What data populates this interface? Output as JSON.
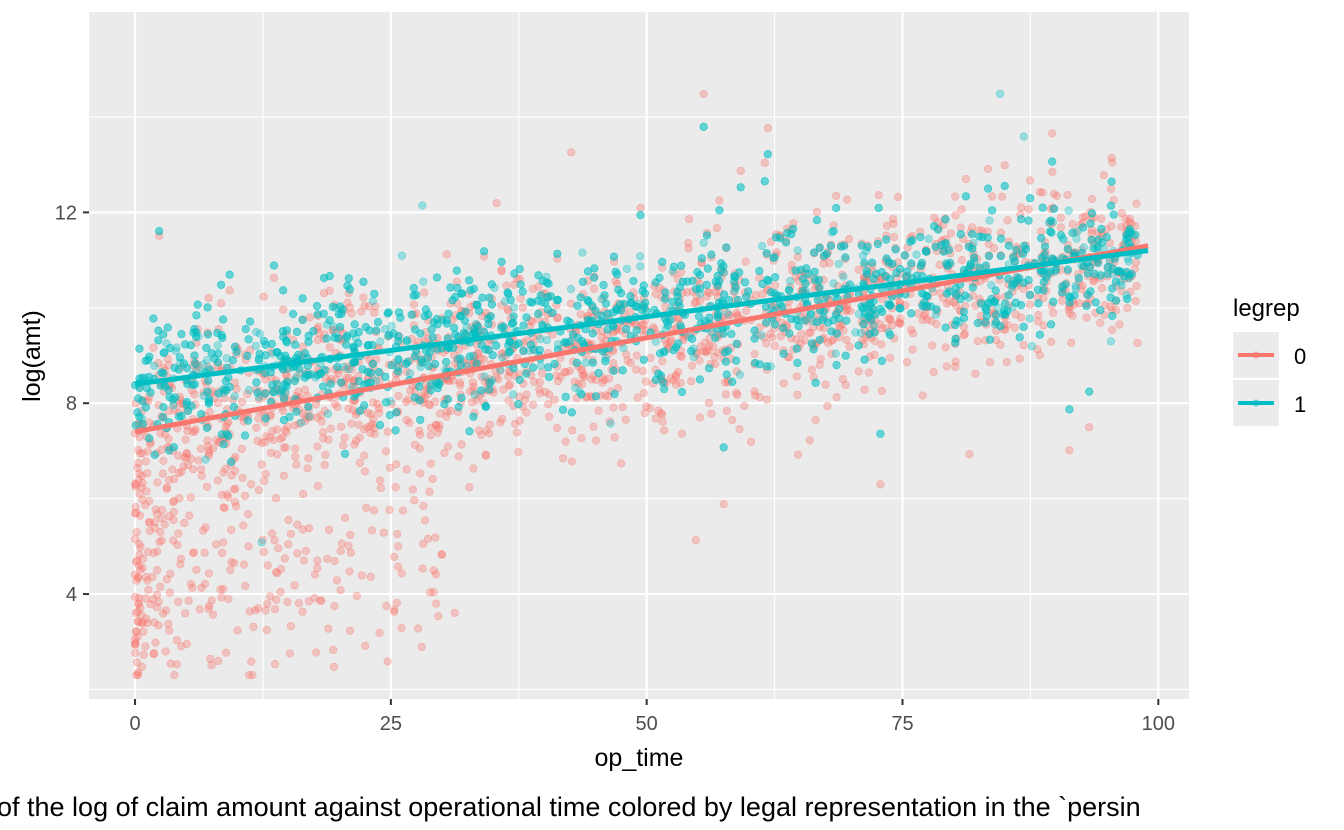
{
  "chart_data": {
    "type": "scatter",
    "title": "",
    "xlabel": "op_time",
    "ylabel": "log(amt)",
    "xlim": [
      -4.5,
      103
    ],
    "ylim": [
      1.8,
      16.2
    ],
    "x_ticks": [
      0,
      25,
      50,
      75,
      100
    ],
    "y_ticks": [
      4,
      8,
      12
    ],
    "x_tick_labels": [
      "0",
      "25",
      "50",
      "75",
      "100"
    ],
    "y_tick_labels": [
      "4",
      "8",
      "12"
    ],
    "grid": true,
    "legend": {
      "title": "legrep",
      "position": "right",
      "entries": [
        {
          "label": "0",
          "color": "#F8766D"
        },
        {
          "label": "1",
          "color": "#00BFC4"
        }
      ]
    },
    "series": [
      {
        "name": "0",
        "color": "#F8766D",
        "trend": {
          "x": [
            0,
            99
          ],
          "y": [
            7.4,
            11.3
          ]
        },
        "points": {
          "x_range": [
            0,
            98
          ],
          "y_range": [
            2.3,
            14.8
          ],
          "approx_center_start": 7.4,
          "approx_center_end": 11.3,
          "low_tail_near_zero": true
        }
      },
      {
        "name": "1",
        "color": "#00BFC4",
        "trend": {
          "x": [
            0,
            99
          ],
          "y": [
            8.4,
            11.2
          ]
        },
        "points": {
          "x_range": [
            0,
            98
          ],
          "y_range": [
            3.0,
            15.1
          ],
          "approx_center_start": 8.4,
          "approx_center_end": 11.2
        }
      }
    ]
  },
  "caption": "t of the log of claim amount against operational time colored by legal representation in the `persin"
}
